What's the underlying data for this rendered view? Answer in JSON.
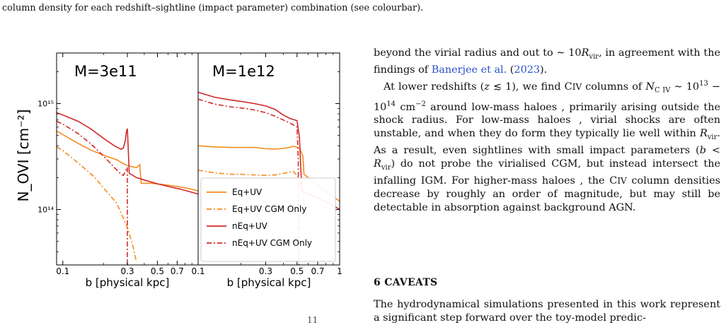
{
  "caption": {
    "tail": "column density for each redshift–sightline (impact parameter) combination (see colourbar)."
  },
  "figure": {
    "ylabel": "N_OVI [cm⁻²]",
    "ylim": [
      30000000000000,
      3000000000000000
    ],
    "yticks": [
      {
        "value": 1000000000000000,
        "label": "10¹⁵"
      },
      {
        "value": 100000000000000,
        "label": "10¹⁴"
      }
    ],
    "legend": {
      "position": "lower-right of right panel",
      "entries": [
        "Eq+UV",
        "Eq+UV CGM Only",
        "nEq+UV",
        "nEq+UV CGM Only"
      ]
    },
    "colors": {
      "eq": "#f28c1f",
      "neq": "#d12a2a"
    }
  },
  "chart_data": [
    {
      "type": "line",
      "panel_label": "M=3e11",
      "xlabel": "b [physical kpc]",
      "xscale": "log",
      "yscale": "log",
      "xlim": [
        0.09,
        1.0
      ],
      "xticks": [
        {
          "value": 0.1,
          "label": "0.1"
        },
        {
          "value": 0.3,
          "label": "0.3"
        },
        {
          "value": 0.5,
          "label": "0.5"
        },
        {
          "value": 0.7,
          "label": "0.7"
        }
      ],
      "series": [
        {
          "name": "Eq+UV",
          "style": "solid",
          "color": "#f28c1f",
          "x": [
            0.09,
            0.1,
            0.13,
            0.16,
            0.2,
            0.25,
            0.29,
            0.3,
            0.32,
            0.35,
            0.37,
            0.38,
            0.45,
            0.55,
            0.7,
            0.85,
            1.0
          ],
          "y": [
            550000000000000,
            510000000000000,
            420000000000000,
            365000000000000,
            325000000000000,
            295000000000000,
            265000000000000,
            260000000000000,
            255000000000000,
            248000000000000,
            265000000000000,
            177000000000000,
            177000000000000,
            172000000000000,
            165000000000000,
            158000000000000,
            150000000000000
          ]
        },
        {
          "name": "Eq+UV CGM Only",
          "style": "dashdot",
          "color": "#f28c1f",
          "x": [
            0.09,
            0.1,
            0.13,
            0.17,
            0.2,
            0.25,
            0.3,
            0.33,
            0.35
          ],
          "y": [
            390000000000000,
            360000000000000,
            275000000000000,
            205000000000000,
            160000000000000,
            115000000000000,
            68000000000000,
            45000000000000,
            32000000000000
          ]
        },
        {
          "name": "nEq+UV",
          "style": "solid",
          "color": "#d12a2a",
          "x": [
            0.09,
            0.1,
            0.13,
            0.16,
            0.2,
            0.24,
            0.27,
            0.28,
            0.29,
            0.295,
            0.3,
            0.31,
            0.35,
            0.4,
            0.5,
            0.6,
            0.75,
            1.0
          ],
          "y": [
            820000000000000,
            780000000000000,
            680000000000000,
            580000000000000,
            470000000000000,
            400000000000000,
            370000000000000,
            380000000000000,
            450000000000000,
            540000000000000,
            580000000000000,
            220000000000000,
            200000000000000,
            190000000000000,
            175000000000000,
            165000000000000,
            155000000000000,
            140000000000000
          ]
        },
        {
          "name": "nEq+UV CGM Only",
          "style": "dashdot",
          "color": "#d12a2a",
          "x": [
            0.09,
            0.1,
            0.13,
            0.16,
            0.2,
            0.24,
            0.27,
            0.28,
            0.29,
            0.3,
            0.3
          ],
          "y": [
            680000000000000,
            640000000000000,
            520000000000000,
            420000000000000,
            320000000000000,
            250000000000000,
            215000000000000,
            210000000000000,
            230000000000000,
            250000000000000,
            30000000000000
          ]
        }
      ]
    },
    {
      "type": "line",
      "panel_label": "M=1e12",
      "xlabel": "b [physical kpc]",
      "xscale": "log",
      "yscale": "log",
      "xlim": [
        0.1,
        1.0
      ],
      "xticks": [
        {
          "value": 0.1,
          "label": "0.1"
        },
        {
          "value": 0.3,
          "label": "0.3"
        },
        {
          "value": 0.5,
          "label": "0.5"
        },
        {
          "value": 0.7,
          "label": "0.7"
        },
        {
          "value": 1.0,
          "label": "1"
        }
      ],
      "series": [
        {
          "name": "Eq+UV",
          "style": "solid",
          "color": "#f28c1f",
          "x": [
            0.1,
            0.13,
            0.17,
            0.2,
            0.25,
            0.3,
            0.35,
            0.42,
            0.47,
            0.52,
            0.55,
            0.56,
            0.6,
            0.7,
            0.85,
            1.0
          ],
          "y": [
            400000000000000,
            390000000000000,
            385000000000000,
            385000000000000,
            385000000000000,
            375000000000000,
            372000000000000,
            380000000000000,
            395000000000000,
            380000000000000,
            320000000000000,
            215000000000000,
            200000000000000,
            170000000000000,
            140000000000000,
            120000000000000
          ]
        },
        {
          "name": "Eq+UV CGM Only",
          "style": "dashdot",
          "color": "#f28c1f",
          "x": [
            0.1,
            0.13,
            0.17,
            0.2,
            0.25,
            0.3,
            0.35,
            0.42,
            0.47,
            0.5,
            0.53,
            0.56,
            0.59
          ],
          "y": [
            235000000000000,
            222000000000000,
            215000000000000,
            215000000000000,
            212000000000000,
            210000000000000,
            212000000000000,
            222000000000000,
            230000000000000,
            210000000000000,
            175000000000000,
            120000000000000,
            80000000000000
          ]
        },
        {
          "name": "nEq+UV",
          "style": "solid",
          "color": "#d12a2a",
          "x": [
            0.1,
            0.13,
            0.17,
            0.2,
            0.25,
            0.3,
            0.35,
            0.4,
            0.45,
            0.5,
            0.52,
            0.54,
            0.6,
            0.7,
            0.85,
            1.0
          ],
          "y": [
            1280000000000000,
            1150000000000000,
            1080000000000000,
            1050000000000000,
            1000000000000000,
            950000000000000,
            880000000000000,
            780000000000000,
            720000000000000,
            690000000000000,
            480000000000000,
            150000000000000,
            140000000000000,
            128000000000000,
            115000000000000,
            100000000000000
          ]
        },
        {
          "name": "nEq+UV CGM Only",
          "style": "dashdot",
          "color": "#d12a2a",
          "x": [
            0.1,
            0.13,
            0.17,
            0.2,
            0.25,
            0.3,
            0.35,
            0.4,
            0.45,
            0.5,
            0.51,
            0.515
          ],
          "y": [
            1100000000000000,
            990000000000000,
            930000000000000,
            910000000000000,
            870000000000000,
            820000000000000,
            760000000000000,
            700000000000000,
            650000000000000,
            600000000000000,
            300000000000000,
            30000000000000
          ]
        }
      ]
    }
  ],
  "text": {
    "p1": [
      "beyond the virial radius and out to ",
      "∼",
      " 10",
      "R",
      "vir",
      ", in agreement with the findings of ",
      "Banerjee et al.",
      " (",
      "2023",
      ")."
    ],
    "p2_parts": {
      "a": "At lower redshifts (",
      "z": "z",
      "b": " ≲ 1), we find C",
      "civ": "IV",
      "c": " columns of ",
      "N": "N",
      "Nsub": "C IV",
      "d": " ∼",
      "e": "10",
      "e1": "13",
      "f": " − 10",
      "e2": "14",
      "g": " cm",
      "e3": "−2",
      "h": " around low-mass haloes , primarily arising outside the shock radius. For low-mass haloes , virial shocks are often unstable, and when they do form they typically lie well within ",
      "R": "R",
      "Rsub": "vir",
      "i": ". As a result, even sightlines with small impact parameters (",
      "bvar": "b",
      "j": " < ",
      "R2": "R",
      "R2sub": "vir",
      "k": ") do not probe the virialised CGM, but instead intersect the infalling IGM. For higher-mass haloes , the C",
      "civ2": "IV",
      "l": " column densities decrease by roughly an order of magnitude, but may still be detectable in absorption against background AGN."
    },
    "section_heading": "6 CAVEATS",
    "p3": "The hydrodynamical simulations presented in this work represent a significant step forward over the toy-model predic-",
    "stray": "11"
  }
}
